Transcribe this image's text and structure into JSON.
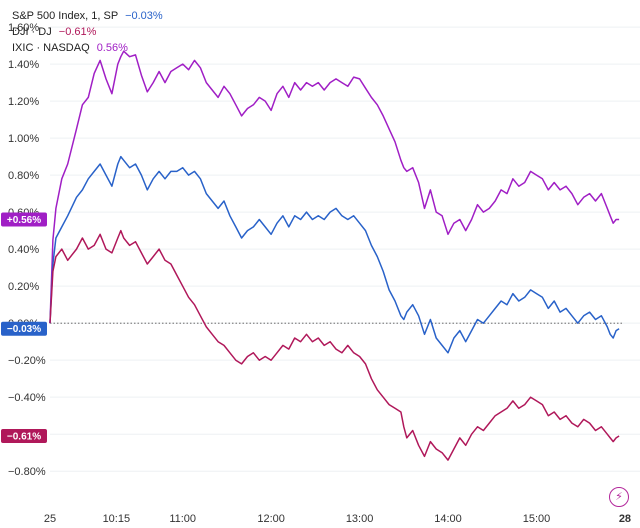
{
  "legend": [
    {
      "name": "S&P 500 Index, 1, SP",
      "value": "−0.03%",
      "color": "#2962c9"
    },
    {
      "name": "DJI · DJ",
      "value": "−0.61%",
      "color": "#b0185a"
    },
    {
      "name": "IXIC · NASDAQ",
      "value": "0.56%",
      "color": "#a01fc5"
    }
  ],
  "badges": [
    {
      "label": "+0.56%",
      "y": 0.56,
      "color": "#a01fc5"
    },
    {
      "label": "−0.03%",
      "y": -0.03,
      "color": "#2962c9"
    },
    {
      "label": "−0.61%",
      "y": -0.61,
      "color": "#b0185a"
    }
  ],
  "chart_data": {
    "type": "line",
    "y_ticks": [
      "1.60%",
      "1.40%",
      "1.20%",
      "1.00%",
      "0.80%",
      "0.60%",
      "0.40%",
      "0.20%",
      "0.00%",
      "−0.20%",
      "−0.40%",
      "−0.60%",
      "−0.80%"
    ],
    "y_tick_values": [
      1.6,
      1.4,
      1.2,
      1.0,
      0.8,
      0.6,
      0.4,
      0.2,
      0.0,
      -0.2,
      -0.4,
      -0.6,
      -0.8
    ],
    "x_ticks": [
      "25",
      "10:15",
      "11:00",
      "12:00",
      "13:00",
      "14:00",
      "15:00",
      "28"
    ],
    "x_tick_minutes": [
      570,
      615,
      660,
      720,
      780,
      840,
      900,
      960
    ],
    "xlim": [
      570,
      958
    ],
    "ylim": [
      -0.88,
      1.66
    ],
    "baseline": 0.0,
    "series": [
      {
        "name": "IXIC · NASDAQ",
        "color": "#a01fc5",
        "x": [
          570,
          572,
          574,
          578,
          582,
          588,
          592,
          596,
          600,
          604,
          608,
          612,
          616,
          618,
          620,
          624,
          628,
          632,
          636,
          640,
          644,
          648,
          652,
          656,
          660,
          664,
          668,
          672,
          676,
          680,
          684,
          688,
          692,
          696,
          700,
          704,
          708,
          712,
          716,
          720,
          724,
          728,
          732,
          736,
          740,
          744,
          748,
          752,
          756,
          760,
          764,
          768,
          772,
          776,
          780,
          784,
          788,
          792,
          796,
          800,
          804,
          808,
          810,
          812,
          816,
          820,
          824,
          828,
          832,
          836,
          840,
          844,
          848,
          852,
          856,
          860,
          864,
          868,
          872,
          876,
          880,
          884,
          888,
          892,
          896,
          900,
          904,
          908,
          912,
          916,
          920,
          924,
          928,
          932,
          936,
          940,
          944,
          948,
          950,
          952,
          954,
          956
        ],
        "y": [
          0.0,
          0.45,
          0.62,
          0.78,
          0.86,
          1.05,
          1.18,
          1.22,
          1.35,
          1.42,
          1.32,
          1.24,
          1.4,
          1.44,
          1.47,
          1.44,
          1.45,
          1.34,
          1.25,
          1.3,
          1.36,
          1.3,
          1.36,
          1.38,
          1.4,
          1.37,
          1.42,
          1.38,
          1.3,
          1.26,
          1.22,
          1.28,
          1.24,
          1.18,
          1.12,
          1.16,
          1.18,
          1.22,
          1.2,
          1.15,
          1.24,
          1.28,
          1.22,
          1.3,
          1.26,
          1.3,
          1.28,
          1.3,
          1.26,
          1.3,
          1.32,
          1.3,
          1.28,
          1.33,
          1.32,
          1.27,
          1.22,
          1.18,
          1.12,
          1.05,
          0.98,
          0.88,
          0.84,
          0.82,
          0.84,
          0.76,
          0.62,
          0.72,
          0.6,
          0.58,
          0.48,
          0.54,
          0.56,
          0.5,
          0.56,
          0.64,
          0.6,
          0.62,
          0.66,
          0.72,
          0.7,
          0.78,
          0.74,
          0.76,
          0.82,
          0.8,
          0.78,
          0.72,
          0.76,
          0.72,
          0.74,
          0.7,
          0.64,
          0.68,
          0.7,
          0.66,
          0.7,
          0.62,
          0.58,
          0.54,
          0.56,
          0.56
        ]
      },
      {
        "name": "S&P 500 Index, 1, SP",
        "color": "#2962c9",
        "x": [
          570,
          572,
          574,
          578,
          582,
          588,
          592,
          596,
          600,
          604,
          608,
          612,
          616,
          618,
          620,
          624,
          628,
          632,
          636,
          640,
          644,
          648,
          652,
          656,
          660,
          664,
          668,
          672,
          676,
          680,
          684,
          688,
          692,
          696,
          700,
          704,
          708,
          712,
          716,
          720,
          724,
          728,
          732,
          736,
          740,
          744,
          748,
          752,
          756,
          760,
          764,
          768,
          772,
          776,
          780,
          784,
          788,
          792,
          796,
          800,
          804,
          808,
          810,
          812,
          816,
          820,
          824,
          828,
          832,
          836,
          840,
          844,
          848,
          852,
          856,
          860,
          864,
          868,
          872,
          876,
          880,
          884,
          888,
          892,
          896,
          900,
          904,
          908,
          912,
          916,
          920,
          924,
          928,
          932,
          936,
          940,
          944,
          948,
          950,
          952,
          954,
          956
        ],
        "y": [
          0.0,
          0.32,
          0.46,
          0.52,
          0.58,
          0.68,
          0.72,
          0.78,
          0.82,
          0.86,
          0.8,
          0.74,
          0.86,
          0.9,
          0.88,
          0.84,
          0.86,
          0.8,
          0.72,
          0.78,
          0.82,
          0.78,
          0.82,
          0.82,
          0.84,
          0.8,
          0.82,
          0.78,
          0.7,
          0.66,
          0.62,
          0.66,
          0.58,
          0.52,
          0.46,
          0.5,
          0.52,
          0.56,
          0.52,
          0.48,
          0.54,
          0.58,
          0.52,
          0.58,
          0.56,
          0.6,
          0.56,
          0.58,
          0.56,
          0.6,
          0.62,
          0.58,
          0.56,
          0.58,
          0.54,
          0.5,
          0.42,
          0.36,
          0.28,
          0.18,
          0.12,
          0.04,
          0.02,
          0.06,
          0.1,
          0.04,
          -0.06,
          0.02,
          -0.08,
          -0.12,
          -0.16,
          -0.08,
          -0.04,
          -0.1,
          -0.04,
          0.02,
          0.0,
          0.04,
          0.08,
          0.12,
          0.1,
          0.16,
          0.12,
          0.14,
          0.18,
          0.16,
          0.14,
          0.08,
          0.12,
          0.06,
          0.08,
          0.04,
          0.0,
          0.04,
          0.06,
          0.02,
          0.04,
          -0.02,
          -0.06,
          -0.08,
          -0.04,
          -0.03
        ]
      },
      {
        "name": "DJI · DJ",
        "color": "#b0185a",
        "x": [
          570,
          572,
          574,
          578,
          582,
          588,
          592,
          596,
          600,
          604,
          608,
          612,
          616,
          618,
          620,
          624,
          628,
          632,
          636,
          640,
          644,
          648,
          652,
          656,
          660,
          664,
          668,
          672,
          676,
          680,
          684,
          688,
          692,
          696,
          700,
          704,
          708,
          712,
          716,
          720,
          724,
          728,
          732,
          736,
          740,
          744,
          748,
          752,
          756,
          760,
          764,
          768,
          772,
          776,
          780,
          784,
          788,
          792,
          796,
          800,
          804,
          808,
          810,
          812,
          816,
          820,
          824,
          828,
          832,
          836,
          840,
          844,
          848,
          852,
          856,
          860,
          864,
          868,
          872,
          876,
          880,
          884,
          888,
          892,
          896,
          900,
          904,
          908,
          912,
          916,
          920,
          924,
          928,
          932,
          936,
          940,
          944,
          948,
          950,
          952,
          954,
          956
        ],
        "y": [
          0.0,
          0.28,
          0.36,
          0.4,
          0.34,
          0.4,
          0.46,
          0.4,
          0.42,
          0.48,
          0.4,
          0.38,
          0.46,
          0.5,
          0.46,
          0.42,
          0.44,
          0.38,
          0.32,
          0.36,
          0.4,
          0.34,
          0.32,
          0.26,
          0.2,
          0.14,
          0.1,
          0.04,
          -0.02,
          -0.06,
          -0.1,
          -0.12,
          -0.16,
          -0.2,
          -0.22,
          -0.18,
          -0.16,
          -0.2,
          -0.18,
          -0.2,
          -0.16,
          -0.12,
          -0.14,
          -0.08,
          -0.1,
          -0.06,
          -0.1,
          -0.08,
          -0.12,
          -0.1,
          -0.14,
          -0.16,
          -0.12,
          -0.16,
          -0.18,
          -0.22,
          -0.3,
          -0.36,
          -0.4,
          -0.44,
          -0.46,
          -0.48,
          -0.56,
          -0.62,
          -0.58,
          -0.66,
          -0.72,
          -0.64,
          -0.68,
          -0.7,
          -0.74,
          -0.68,
          -0.62,
          -0.66,
          -0.6,
          -0.56,
          -0.58,
          -0.54,
          -0.5,
          -0.48,
          -0.46,
          -0.42,
          -0.46,
          -0.44,
          -0.4,
          -0.42,
          -0.44,
          -0.5,
          -0.48,
          -0.52,
          -0.5,
          -0.54,
          -0.56,
          -0.52,
          -0.54,
          -0.58,
          -0.56,
          -0.6,
          -0.62,
          -0.64,
          -0.62,
          -0.61
        ]
      }
    ]
  }
}
